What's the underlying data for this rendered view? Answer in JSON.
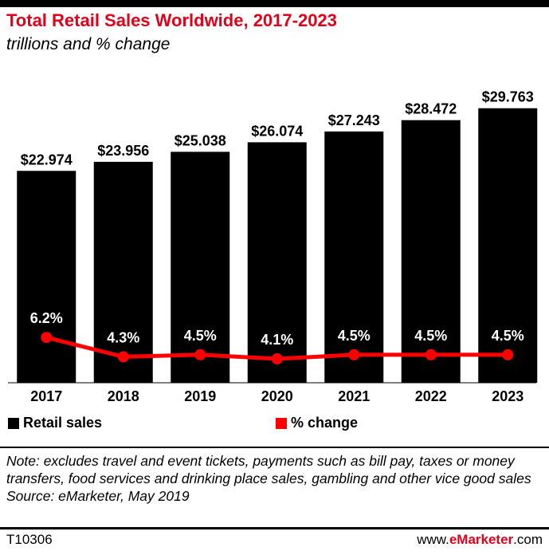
{
  "header": {
    "title": "Total Retail Sales Worldwide, 2017-2023",
    "subtitle": "trillions and % change"
  },
  "legend": {
    "bar_label": "Retail sales",
    "line_label": "% change"
  },
  "colors": {
    "title": "#e3001b",
    "bars": "#000000",
    "line": "#ff0000"
  },
  "chart_data": {
    "type": "bar",
    "title": "Total Retail Sales Worldwide, 2017-2023",
    "subtitle": "trillions and % change",
    "categories": [
      "2017",
      "2018",
      "2019",
      "2020",
      "2021",
      "2022",
      "2023"
    ],
    "series": [
      {
        "name": "Retail sales",
        "type": "bar",
        "values": [
          22.974,
          23.956,
          25.038,
          26.074,
          27.243,
          28.472,
          29.763
        ],
        "labels": [
          "$22.974",
          "$23.956",
          "$25.038",
          "$26.074",
          "$27.243",
          "$28.472",
          "$29.763"
        ]
      },
      {
        "name": "% change",
        "type": "line",
        "values": [
          6.2,
          4.3,
          4.5,
          4.1,
          4.5,
          4.5,
          4.5
        ],
        "labels": [
          "6.2%",
          "4.3%",
          "4.5%",
          "4.1%",
          "4.5%",
          "4.5%",
          "4.5%"
        ]
      }
    ],
    "ylim": [
      0,
      30
    ],
    "grid": false,
    "legend_position": "bottom"
  },
  "footer": {
    "note": "Note: excludes travel and event tickets, payments such as bill pay, taxes or money transfers, food services and drinking place sales, gambling and other vice good sales",
    "source": "Source: eMarketer, May 2019",
    "code": "T10306",
    "brand_prefix": "www.",
    "brand_name": "eMarketer",
    "brand_suffix": ".com"
  }
}
